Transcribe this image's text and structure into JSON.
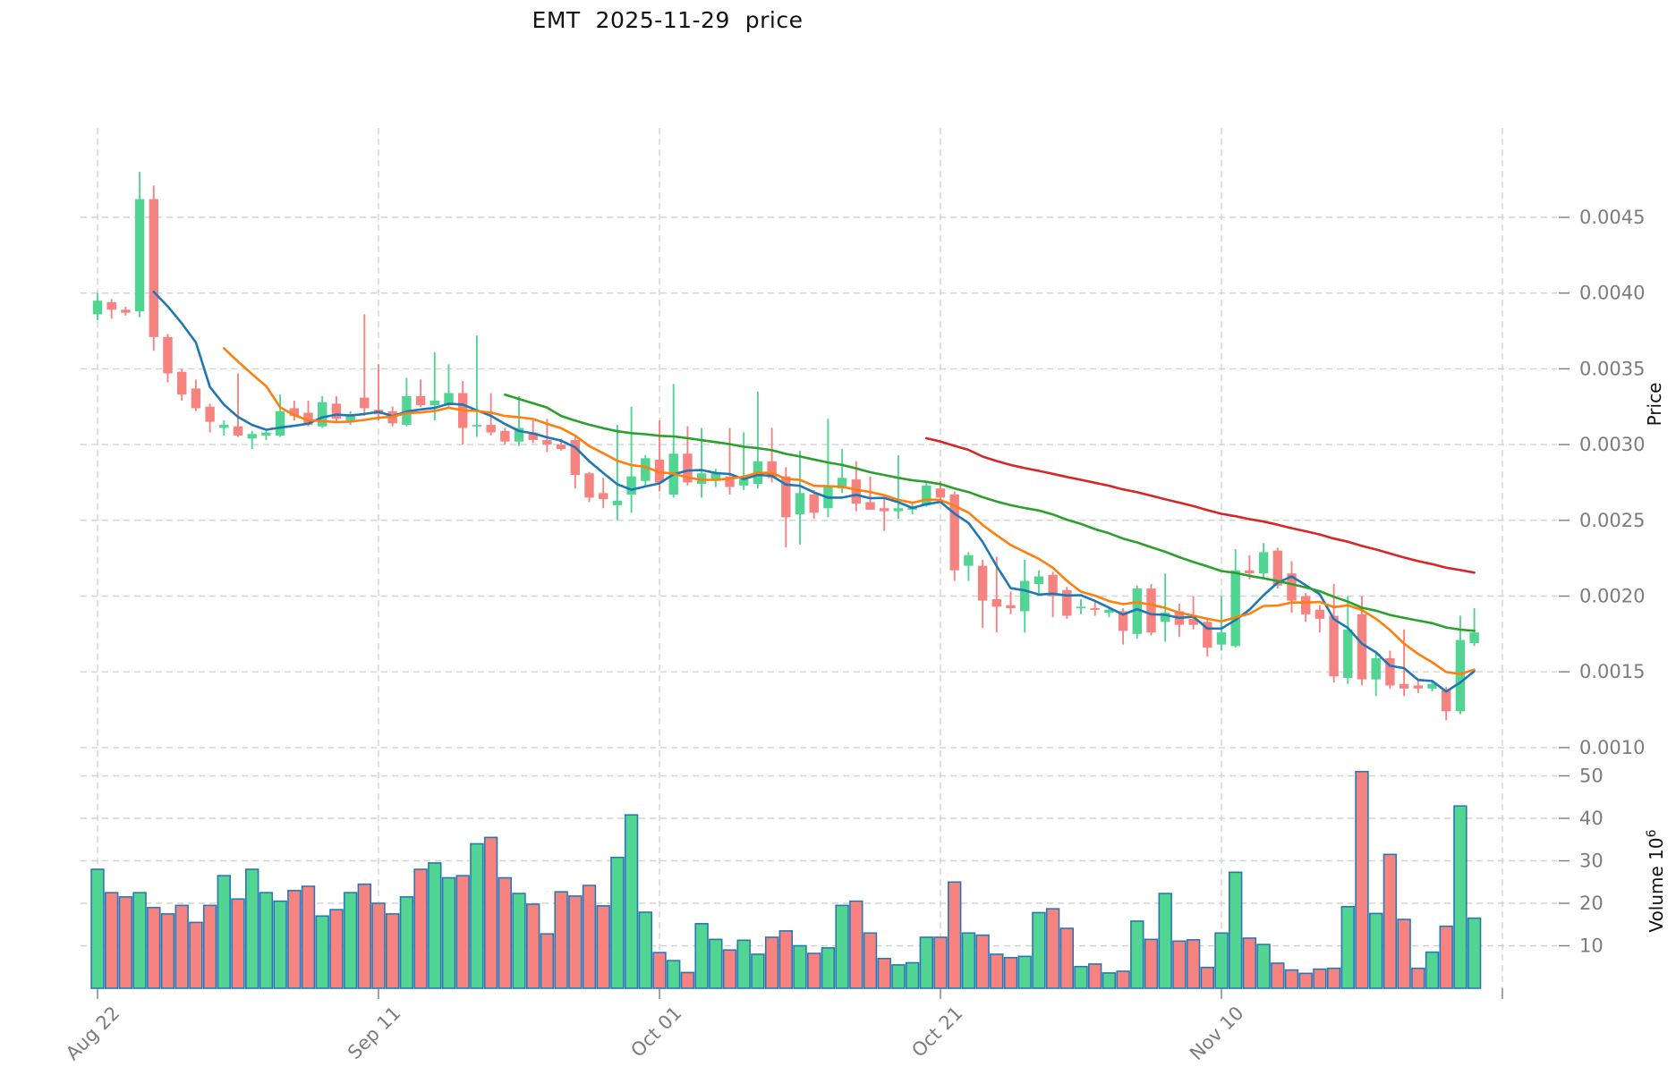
{
  "title": "EMT  2025-11-29  price",
  "axes": {
    "price_axis_label": "Price",
    "volume_axis_label": "Volume",
    "volume_axis_base": "10",
    "volume_axis_exponent": "6",
    "price_ticks": [
      0.001,
      0.0015,
      0.002,
      0.0025,
      0.003,
      0.0035,
      0.004,
      0.0045
    ],
    "volume_ticks": [
      10,
      20,
      30,
      40,
      50
    ],
    "x_ticks": [
      {
        "index": 0,
        "label": "Aug 22"
      },
      {
        "index": 20,
        "label": "Sep 11"
      },
      {
        "index": 40,
        "label": "Oct 01"
      },
      {
        "index": 60,
        "label": "Oct 21"
      },
      {
        "index": 80,
        "label": "Nov 10"
      },
      {
        "index": 100,
        "label": ""
      }
    ]
  },
  "chart_data": {
    "type": "candlestick",
    "title": "EMT  2025-11-29  price",
    "xlabel": "",
    "ylabel": "Price",
    "ylabel2": "Volume 10^6",
    "grid": true,
    "legend_position": "none",
    "x_tick_labels": [
      "Aug 22",
      "Sep 11",
      "Oct 01",
      "Oct 21",
      "Nov 10"
    ],
    "ylim_price": [
      0.000946,
      0.005108
    ],
    "ylim_volume": [
      0,
      52.6
    ],
    "moving_averages": [
      {
        "name": "MA5",
        "window": 5,
        "color": "#1f77b4"
      },
      {
        "name": "MA10",
        "window": 10,
        "color": "#ff7f0e"
      },
      {
        "name": "MA30",
        "window": 30,
        "color": "#2ca02c"
      },
      {
        "name": "MA60",
        "window": 60,
        "color": "#d62728"
      }
    ],
    "colors": {
      "up": "#52d492",
      "down": "#f78381",
      "volume_bar_edge": "#2878b5",
      "grid": "#d2d2d2",
      "tick_text": "#7c7c7c",
      "axis_label_text": "#111111"
    },
    "candles_ohlc": [
      [
        0.00386,
        0.004,
        0.00382,
        0.00395
      ],
      [
        0.00394,
        0.00396,
        0.00383,
        0.00389
      ],
      [
        0.00389,
        0.00391,
        0.00385,
        0.00387
      ],
      [
        0.00388,
        0.0048,
        0.00384,
        0.00462
      ],
      [
        0.00462,
        0.00471,
        0.00362,
        0.00371
      ],
      [
        0.00371,
        0.00373,
        0.00341,
        0.00347
      ],
      [
        0.00348,
        0.0035,
        0.00329,
        0.00333
      ],
      [
        0.00337,
        0.00343,
        0.00322,
        0.00324
      ],
      [
        0.00325,
        0.00327,
        0.00308,
        0.00315
      ],
      [
        0.00311,
        0.00316,
        0.00306,
        0.00313
      ],
      [
        0.00312,
        0.00347,
        0.00305,
        0.00306
      ],
      [
        0.00304,
        0.00309,
        0.00297,
        0.00307
      ],
      [
        0.00306,
        0.00309,
        0.00303,
        0.00308
      ],
      [
        0.00306,
        0.00333,
        0.00305,
        0.00322
      ],
      [
        0.00324,
        0.00329,
        0.00316,
        0.00319
      ],
      [
        0.00321,
        0.00329,
        0.00312,
        0.00313
      ],
      [
        0.00312,
        0.00332,
        0.00311,
        0.00328
      ],
      [
        0.00327,
        0.00332,
        0.00315,
        0.00317
      ],
      [
        0.00315,
        0.00322,
        0.00313,
        0.00319
      ],
      [
        0.00331,
        0.00386,
        0.00319,
        0.00324
      ],
      [
        0.00323,
        0.00353,
        0.00316,
        0.0032
      ],
      [
        0.00322,
        0.00325,
        0.00312,
        0.00314
      ],
      [
        0.00313,
        0.00344,
        0.00312,
        0.00332
      ],
      [
        0.00332,
        0.00343,
        0.00325,
        0.00326
      ],
      [
        0.00326,
        0.00361,
        0.00316,
        0.00329
      ],
      [
        0.00326,
        0.00353,
        0.00325,
        0.00334
      ],
      [
        0.00334,
        0.00342,
        0.003,
        0.00311
      ],
      [
        0.00312,
        0.00372,
        0.00305,
        0.00313
      ],
      [
        0.00313,
        0.00334,
        0.00306,
        0.00308
      ],
      [
        0.00309,
        0.00311,
        0.003,
        0.00302
      ],
      [
        0.00302,
        0.00332,
        0.00299,
        0.00311
      ],
      [
        0.00308,
        0.00316,
        0.00301,
        0.00303
      ],
      [
        0.00303,
        0.00317,
        0.00295,
        0.003
      ],
      [
        0.003,
        0.00304,
        0.00296,
        0.00297
      ],
      [
        0.00303,
        0.00305,
        0.00271,
        0.0028
      ],
      [
        0.00281,
        0.00282,
        0.00262,
        0.00265
      ],
      [
        0.00268,
        0.00278,
        0.00258,
        0.00264
      ],
      [
        0.0026,
        0.00313,
        0.0025,
        0.00263
      ],
      [
        0.00267,
        0.00325,
        0.00255,
        0.00279
      ],
      [
        0.00276,
        0.00293,
        0.00272,
        0.00291
      ],
      [
        0.0029,
        0.00316,
        0.00269,
        0.00275
      ],
      [
        0.00267,
        0.0034,
        0.00265,
        0.00294
      ],
      [
        0.00294,
        0.00312,
        0.00273,
        0.00275
      ],
      [
        0.00274,
        0.00311,
        0.00265,
        0.00281
      ],
      [
        0.00276,
        0.00284,
        0.00272,
        0.00281
      ],
      [
        0.00279,
        0.00311,
        0.00267,
        0.00272
      ],
      [
        0.00273,
        0.00308,
        0.0027,
        0.00277
      ],
      [
        0.00274,
        0.00335,
        0.00271,
        0.00289
      ],
      [
        0.00289,
        0.00311,
        0.00275,
        0.00278
      ],
      [
        0.00279,
        0.00285,
        0.00232,
        0.00252
      ],
      [
        0.00254,
        0.00296,
        0.00234,
        0.00268
      ],
      [
        0.00267,
        0.0027,
        0.00251,
        0.00255
      ],
      [
        0.00258,
        0.00317,
        0.00252,
        0.00272
      ],
      [
        0.00271,
        0.00297,
        0.00268,
        0.00278
      ],
      [
        0.00277,
        0.00289,
        0.00256,
        0.00261
      ],
      [
        0.00262,
        0.00279,
        0.00257,
        0.00257
      ],
      [
        0.00258,
        0.00265,
        0.00243,
        0.00256
      ],
      [
        0.00256,
        0.00293,
        0.00251,
        0.00258
      ],
      [
        0.00257,
        0.00262,
        0.00254,
        0.00259
      ],
      [
        0.0026,
        0.00276,
        0.00259,
        0.00273
      ],
      [
        0.00271,
        0.00276,
        0.00262,
        0.00265
      ],
      [
        0.00267,
        0.00269,
        0.0021,
        0.00217
      ],
      [
        0.0022,
        0.00229,
        0.0021,
        0.00227
      ],
      [
        0.0022,
        0.00224,
        0.00179,
        0.00197
      ],
      [
        0.00198,
        0.00226,
        0.00176,
        0.00193
      ],
      [
        0.00194,
        0.00203,
        0.00188,
        0.00192
      ],
      [
        0.0019,
        0.00224,
        0.00176,
        0.0021
      ],
      [
        0.00208,
        0.00217,
        0.00202,
        0.00213
      ],
      [
        0.00214,
        0.00216,
        0.00186,
        0.002
      ],
      [
        0.00204,
        0.00206,
        0.00185,
        0.00187
      ],
      [
        0.00192,
        0.00198,
        0.00188,
        0.00193
      ],
      [
        0.00192,
        0.00196,
        0.00187,
        0.00191
      ],
      [
        0.00189,
        0.00193,
        0.00186,
        0.00191
      ],
      [
        0.0019,
        0.00192,
        0.00168,
        0.00177
      ],
      [
        0.00175,
        0.00207,
        0.00172,
        0.00205
      ],
      [
        0.00205,
        0.00208,
        0.00174,
        0.00176
      ],
      [
        0.00183,
        0.00215,
        0.0017,
        0.00189
      ],
      [
        0.0019,
        0.00195,
        0.00173,
        0.00181
      ],
      [
        0.00185,
        0.002,
        0.00178,
        0.00181
      ],
      [
        0.00183,
        0.00185,
        0.0016,
        0.00166
      ],
      [
        0.00168,
        0.002,
        0.00164,
        0.00176
      ],
      [
        0.00167,
        0.00231,
        0.00166,
        0.00217
      ],
      [
        0.00217,
        0.00227,
        0.00211,
        0.00215
      ],
      [
        0.00215,
        0.00235,
        0.00212,
        0.00229
      ],
      [
        0.0023,
        0.00232,
        0.00205,
        0.00207
      ],
      [
        0.00215,
        0.00223,
        0.00189,
        0.00197
      ],
      [
        0.002,
        0.00202,
        0.00183,
        0.00188
      ],
      [
        0.00191,
        0.00194,
        0.00176,
        0.00185
      ],
      [
        0.00187,
        0.00208,
        0.00143,
        0.00147
      ],
      [
        0.00146,
        0.002,
        0.00142,
        0.00178
      ],
      [
        0.00188,
        0.002,
        0.00141,
        0.00145
      ],
      [
        0.00145,
        0.00164,
        0.00134,
        0.00159
      ],
      [
        0.00159,
        0.00164,
        0.00139,
        0.00141
      ],
      [
        0.00142,
        0.00178,
        0.00134,
        0.00139
      ],
      [
        0.00141,
        0.00144,
        0.00136,
        0.00139
      ],
      [
        0.00139,
        0.00144,
        0.00137,
        0.00142
      ],
      [
        0.00138,
        0.0014,
        0.00118,
        0.00124
      ],
      [
        0.00124,
        0.00187,
        0.00122,
        0.00171
      ],
      [
        0.00169,
        0.00192,
        0.00167,
        0.00176
      ]
    ],
    "volumes_millions": [
      28,
      22.5,
      21.5,
      22.5,
      19,
      17.5,
      19.5,
      15.5,
      19.5,
      26.5,
      21,
      28,
      22.5,
      20.5,
      23,
      24,
      17,
      18.5,
      22.5,
      24.5,
      20,
      17.5,
      21.5,
      28,
      29.5,
      26,
      26.5,
      34,
      35.5,
      26,
      22.3,
      19.8,
      12.8,
      22.7,
      21.7,
      24.2,
      19.4,
      30.8,
      40.8,
      17.9,
      8.4,
      6.5,
      3.7,
      15.2,
      11.5,
      9,
      11.3,
      8,
      12,
      13.5,
      10,
      8.2,
      9.5,
      19.5,
      20.5,
      13,
      7,
      5.5,
      6,
      12,
      12,
      25,
      13,
      12.5,
      8,
      7.2,
      7.5,
      17.8,
      18.7,
      14.1,
      5.1,
      5.7,
      3.6,
      4,
      15.8,
      11.5,
      22.3,
      11.1,
      11.4,
      4.9,
      13,
      27.3,
      11.8,
      10.3,
      5.9,
      4.3,
      3.5,
      4.5,
      4.7,
      19.2,
      51,
      17.6,
      31.5,
      16.2,
      4.7,
      8.5,
      14.6,
      42.9,
      16.5
    ]
  }
}
